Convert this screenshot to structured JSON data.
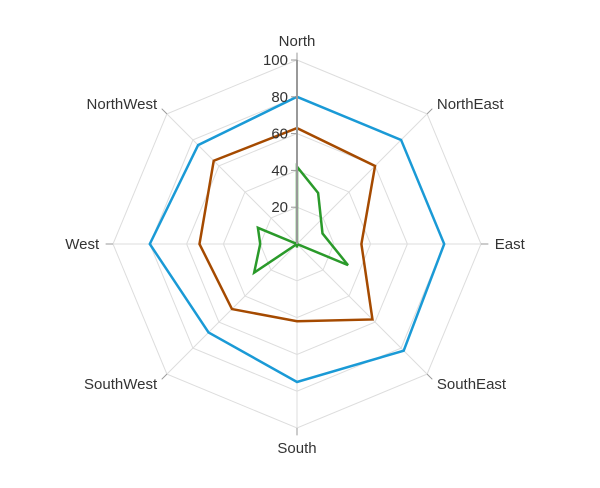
{
  "chart_data": {
    "type": "radar",
    "categories": [
      "North",
      "NorthEast",
      "East",
      "SouthEast",
      "South",
      "SouthWest",
      "West",
      "NorthWest"
    ],
    "r_ticks": [
      20,
      40,
      60,
      80,
      100
    ],
    "rlim": [
      0,
      100
    ],
    "grid": true,
    "series": [
      {
        "color": "#1a9ad6",
        "values": [
          80,
          80,
          80,
          82,
          75,
          68,
          80,
          76
        ],
        "extra_points": []
      },
      {
        "color": "#a54a00",
        "values": [
          63,
          60,
          35,
          58,
          42,
          50,
          53,
          64
        ],
        "extra_points": []
      },
      {
        "color": "#2a9a2a",
        "values": [
          42,
          0,
          0,
          0,
          2,
          0,
          20,
          0
        ],
        "extra_points": [
          {
            "after": 0,
            "angle": 22.5,
            "r": 30
          },
          {
            "after": 0,
            "angle": 67.5,
            "r": 15
          },
          {
            "after": 0,
            "angle": 112.5,
            "r": 30
          },
          {
            "after": 5,
            "angle": 236.25,
            "r": 28
          },
          {
            "after": 6,
            "angle": 292.5,
            "r": 23
          }
        ]
      }
    ]
  }
}
